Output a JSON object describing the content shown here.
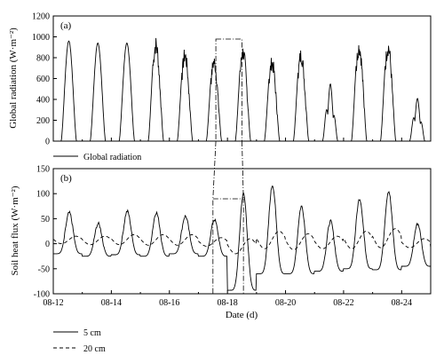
{
  "chart_data": [
    {
      "panel": "(a)",
      "type": "line",
      "ylabel": "Global radiation (W·m⁻²)",
      "ylim": [
        0,
        1200
      ],
      "yticks": [
        0,
        200,
        400,
        600,
        800,
        1000,
        1200
      ],
      "xlim_days": [
        12,
        25
      ],
      "series": [
        {
          "name": "Global radiation",
          "daily": [
            {
              "day": 12,
              "peak": 960,
              "shape": "smooth"
            },
            {
              "day": 13,
              "peak": 940,
              "shape": "smooth"
            },
            {
              "day": 14,
              "peak": 940,
              "shape": "smooth"
            },
            {
              "day": 15,
              "peak": 1010,
              "shape": "noisy"
            },
            {
              "day": 16,
              "peak": 900,
              "shape": "noisy"
            },
            {
              "day": 17,
              "peak": 830,
              "shape": "noisy"
            },
            {
              "day": 18,
              "peak": 930,
              "shape": "noisy"
            },
            {
              "day": 19,
              "peak": 820,
              "shape": "noisy"
            },
            {
              "day": 20,
              "peak": 900,
              "shape": "noisy"
            },
            {
              "day": 21,
              "peak": 550,
              "shape": "cloudy"
            },
            {
              "day": 22,
              "peak": 990,
              "shape": "noisy"
            },
            {
              "day": 23,
              "peak": 990,
              "shape": "noisy"
            },
            {
              "day": 24,
              "peak": 410,
              "shape": "cloudy"
            }
          ]
        }
      ],
      "highlight_window_days": [
        17.6,
        18.5
      ]
    },
    {
      "panel": "(b)",
      "type": "line",
      "ylabel": "Soil heat flux (W·m⁻²)",
      "xlabel": "Date (d)",
      "ylim": [
        -100,
        150
      ],
      "yticks": [
        -100,
        -50,
        0,
        50,
        100,
        150
      ],
      "xticks": [
        "08-12",
        "08-14",
        "08-16",
        "08-18",
        "08-20",
        "08-22",
        "08-24"
      ],
      "xlim_days": [
        12,
        25
      ],
      "series": [
        {
          "name": "5 cm",
          "style": "solid",
          "daily": [
            {
              "day": 12,
              "max": 62,
              "min": -20
            },
            {
              "day": 13,
              "max": 40,
              "min": -25
            },
            {
              "day": 14,
              "max": 65,
              "min": -22
            },
            {
              "day": 15,
              "max": 62,
              "min": -25
            },
            {
              "day": 16,
              "max": 55,
              "min": -20
            },
            {
              "day": 17,
              "max": 48,
              "min": -25
            },
            {
              "day": 18,
              "max": 100,
              "min": -93
            },
            {
              "day": 19,
              "max": 117,
              "min": -60
            },
            {
              "day": 20,
              "max": 75,
              "min": -60
            },
            {
              "day": 21,
              "max": 45,
              "min": -55
            },
            {
              "day": 22,
              "max": 90,
              "min": -50
            },
            {
              "day": 23,
              "max": 105,
              "min": -52
            },
            {
              "day": 24,
              "max": 40,
              "min": -45
            }
          ]
        },
        {
          "name": "20 cm",
          "style": "dashed",
          "daily": [
            {
              "day": 12,
              "max": 15,
              "min": 0
            },
            {
              "day": 13,
              "max": 15,
              "min": -2
            },
            {
              "day": 14,
              "max": 18,
              "min": -2
            },
            {
              "day": 15,
              "max": 18,
              "min": -3
            },
            {
              "day": 16,
              "max": 18,
              "min": -3
            },
            {
              "day": 17,
              "max": 12,
              "min": -5
            },
            {
              "day": 18,
              "max": 10,
              "min": -20
            },
            {
              "day": 19,
              "max": 25,
              "min": -10
            },
            {
              "day": 20,
              "max": 20,
              "min": -12
            },
            {
              "day": 21,
              "max": 15,
              "min": -10
            },
            {
              "day": 22,
              "max": 25,
              "min": -10
            },
            {
              "day": 23,
              "max": 30,
              "min": -8
            },
            {
              "day": 24,
              "max": 10,
              "min": -8
            }
          ]
        }
      ],
      "highlight_window_days": [
        17.5,
        18.55
      ]
    }
  ]
}
